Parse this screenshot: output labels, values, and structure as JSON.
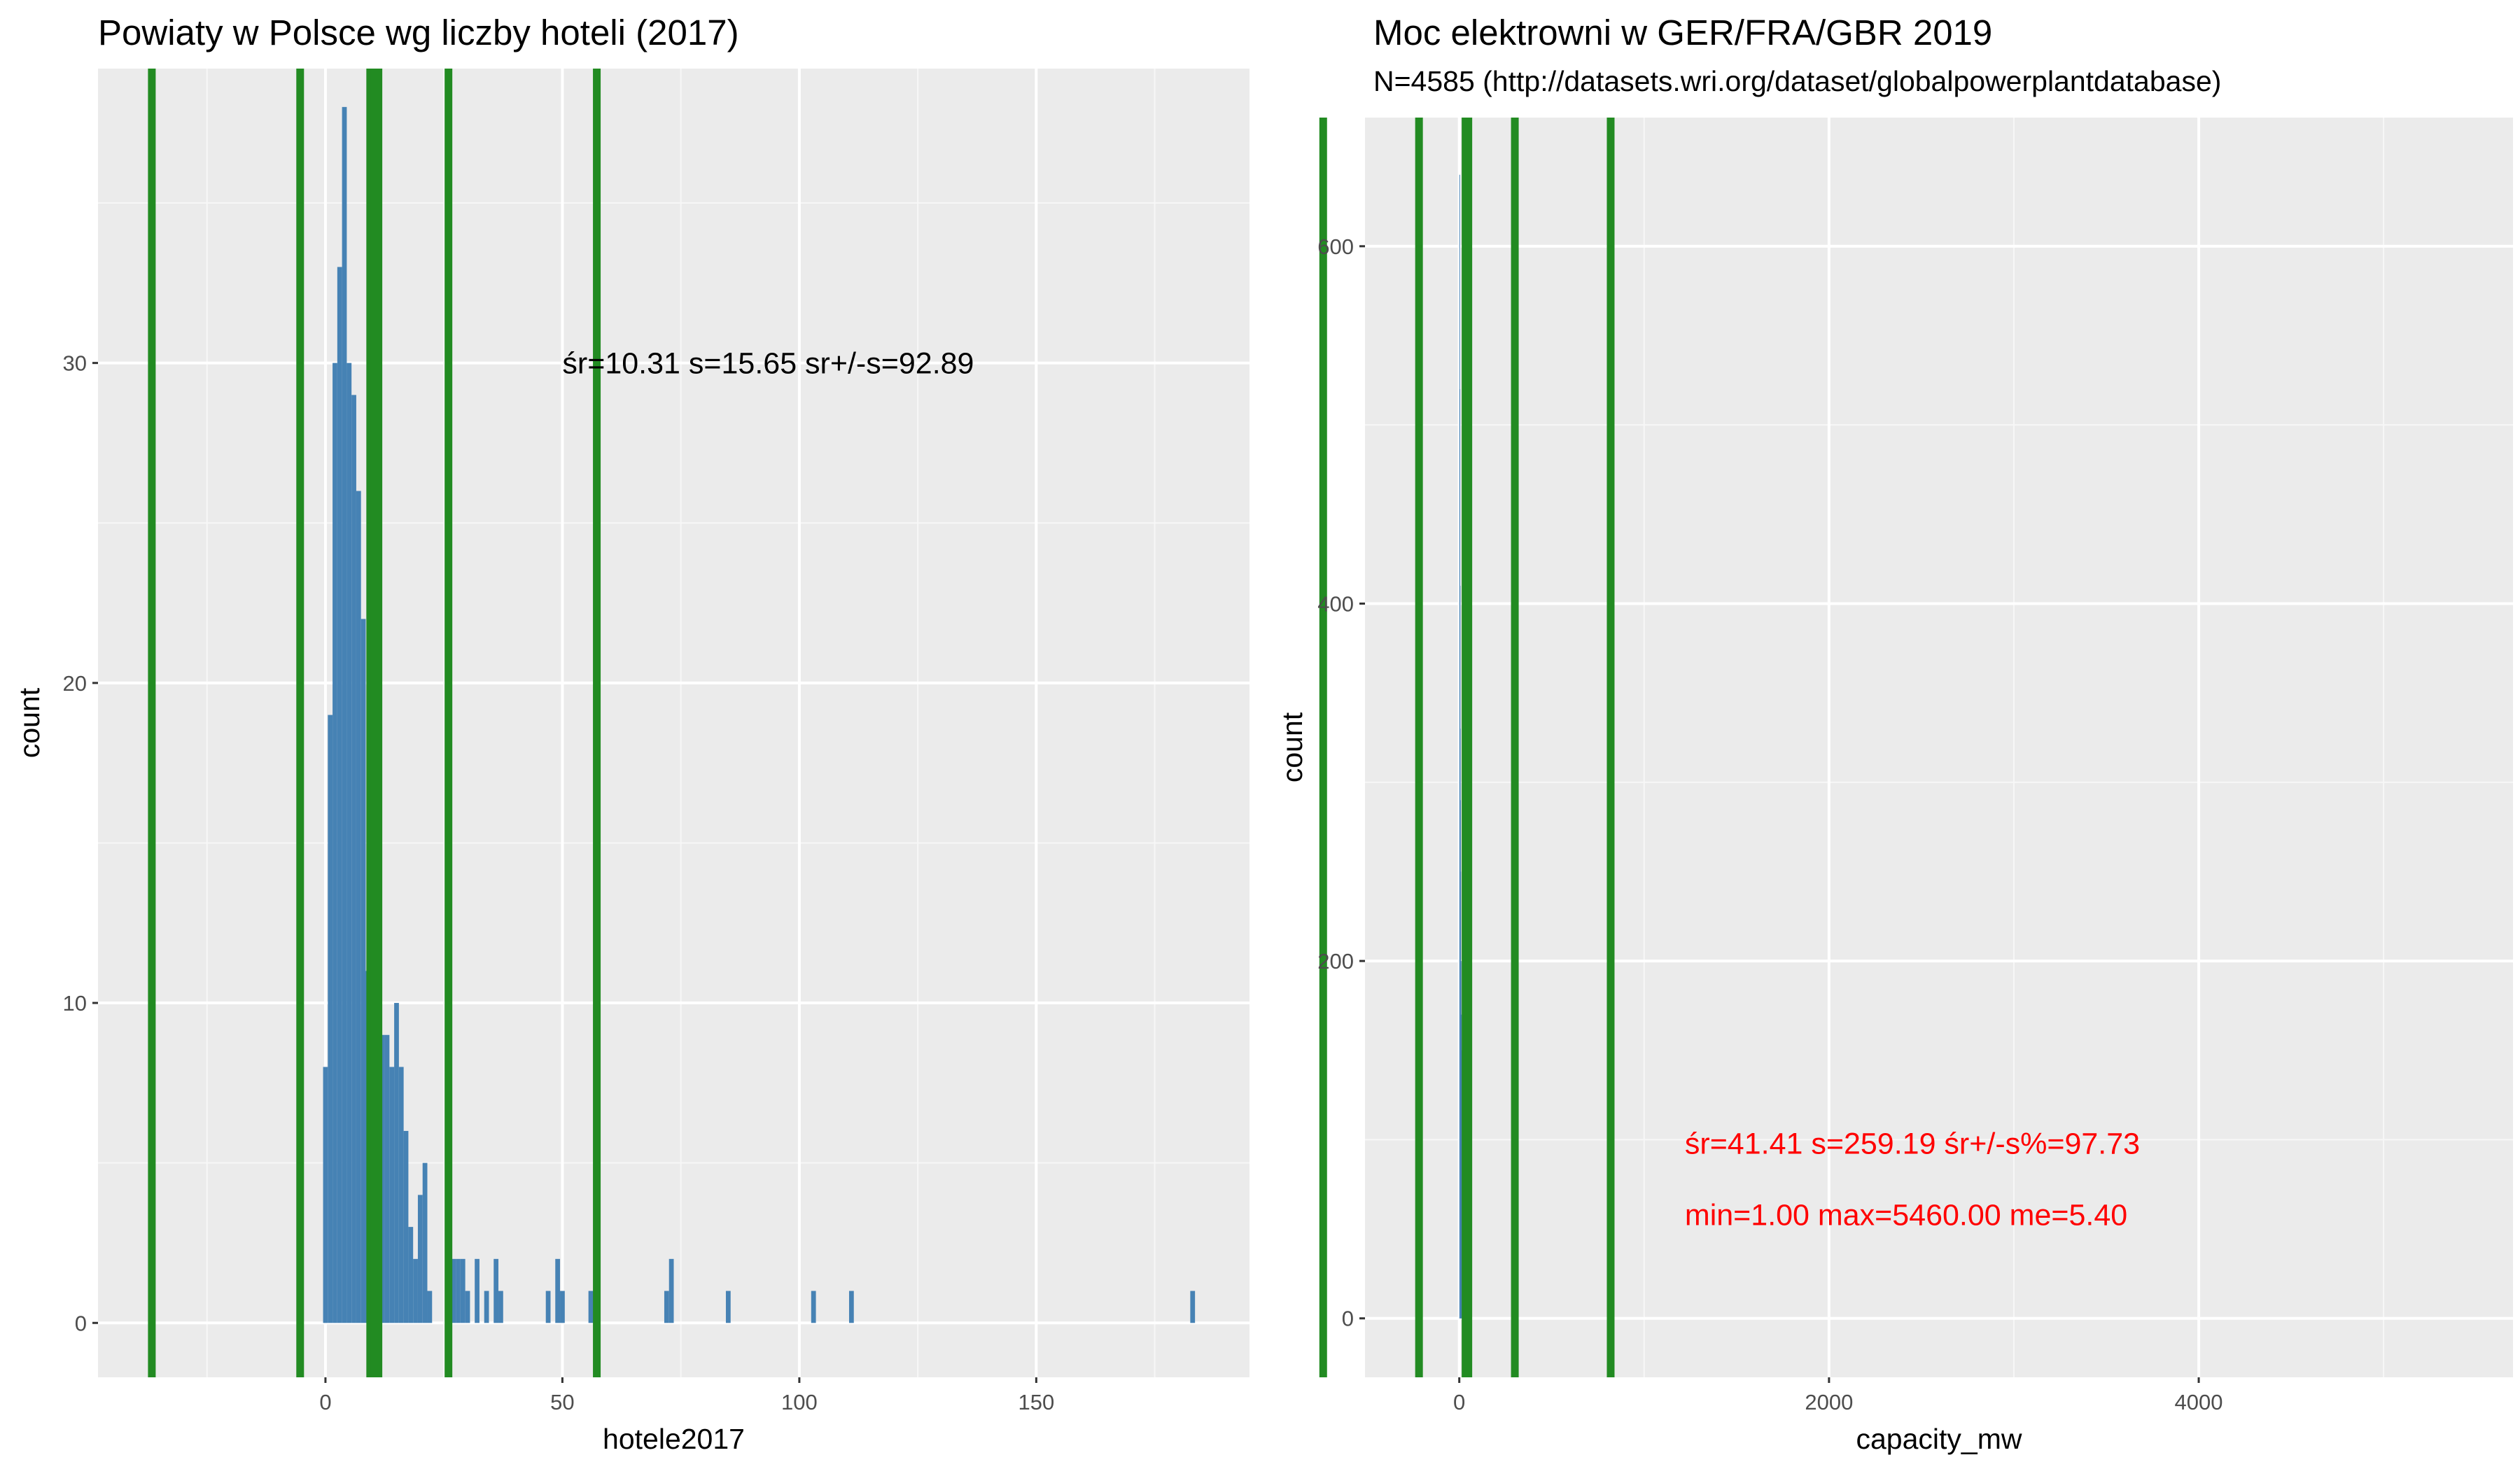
{
  "chart_data": [
    {
      "type": "bar",
      "title": "Powiaty w Polsce wg liczby hoteli (2017)",
      "subtitle": "",
      "xlabel": "hotele2017",
      "ylabel": "count",
      "xlim": [
        -48,
        195
      ],
      "ylim": [
        -1.7,
        39.2
      ],
      "x_ticks": [
        0,
        50,
        100,
        150
      ],
      "y_ticks": [
        0,
        10,
        20,
        30
      ],
      "bar_color": "#4682b4",
      "vline_color": "#228b22",
      "grid": true,
      "histogram": {
        "bin_width": 1,
        "x": [
          0,
          1,
          2,
          3,
          4,
          5,
          6,
          7,
          8,
          9,
          10,
          11,
          12,
          13,
          14,
          15,
          16,
          17,
          18,
          19,
          20,
          21,
          22,
          26,
          27,
          28,
          29,
          30,
          32,
          34,
          36,
          37,
          47,
          49,
          50,
          56,
          72,
          73,
          85,
          103,
          111,
          183
        ],
        "counts": [
          8,
          19,
          30,
          33,
          38,
          30,
          29,
          26,
          22,
          11,
          10,
          12,
          9,
          9,
          8,
          10,
          8,
          6,
          3,
          2,
          4,
          5,
          1,
          2,
          2,
          2,
          2,
          1,
          2,
          1,
          2,
          1,
          1,
          2,
          1,
          1,
          1,
          2,
          1,
          1,
          1,
          1
        ]
      },
      "vlines": [
        -36.64,
        -5.34,
        9.44,
        10.31,
        11.18,
        25.96,
        57.26
      ],
      "annotations": [
        {
          "text": "śr=10.31 s=15.65 sr+/-s=92.89",
          "x": 50,
          "y": 30,
          "color": "#000000"
        }
      ]
    },
    {
      "type": "bar",
      "title": "Moc elektrowni w GER/FRA/GBR 2019",
      "subtitle": "N=4585 (http://datasets.wri.org/dataset/globalpowerplantdatabase)",
      "xlabel": "capacity_mw",
      "ylabel": "count",
      "xlim": [
        -510,
        5700
      ],
      "ylim": [
        -33,
        672
      ],
      "x_ticks": [
        0,
        2000,
        4000
      ],
      "y_ticks": [
        0,
        200,
        400,
        600
      ],
      "bar_color": "#4682b4",
      "vline_color": "#228b22",
      "grid": true,
      "histogram": {
        "bin_width": 1,
        "x": [
          1,
          2,
          3,
          4,
          5,
          6,
          8,
          10,
          12,
          15,
          20,
          25,
          30,
          40,
          50
        ],
        "counts": [
          640,
          520,
          410,
          330,
          290,
          250,
          200,
          170,
          150,
          130,
          110,
          90,
          70,
          50,
          30
        ]
      },
      "vlines": [
        -736.17,
        -217.79,
        33.81,
        41.41,
        49.01,
        300.6,
        818.98
      ],
      "annotations": [
        {
          "text": "śr=41.41 s=259.19 śr+/-s%=97.73",
          "x": 1220,
          "y": 98,
          "color": "#ff0000"
        },
        {
          "text": "min=1.00 max=5460.00 me=5.40",
          "x": 1220,
          "y": 58,
          "color": "#ff0000"
        }
      ]
    }
  ]
}
